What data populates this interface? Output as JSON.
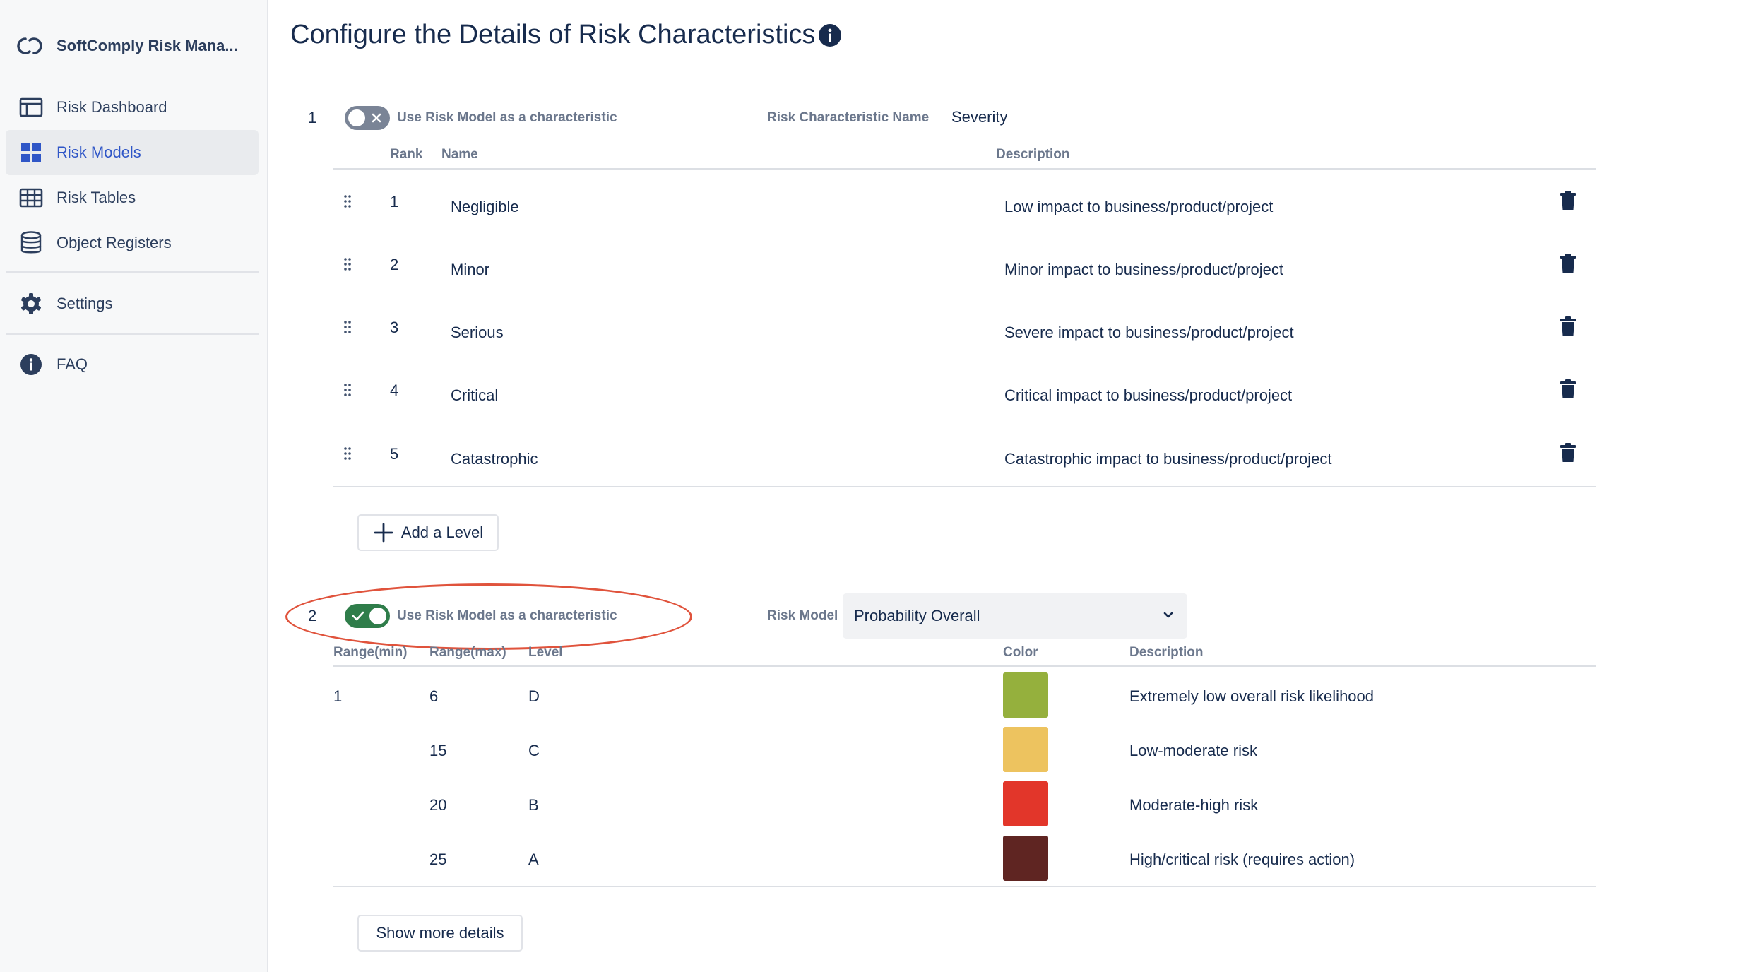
{
  "sidebar": {
    "app_name": "SoftComply Risk Mana...",
    "logo_icon": "softcomply-logo",
    "items": [
      {
        "label": "Risk Dashboard",
        "icon": "dashboard-icon"
      },
      {
        "label": "Risk Models",
        "icon": "grid-icon",
        "active": true
      },
      {
        "label": "Risk Tables",
        "icon": "table-icon"
      },
      {
        "label": "Object Registers",
        "icon": "database-icon"
      },
      {
        "label": "Settings",
        "icon": "gear-icon"
      },
      {
        "label": "FAQ",
        "icon": "info-icon"
      }
    ]
  },
  "page": {
    "title": "Configure the Details of Risk Characteristics"
  },
  "characteristic_1": {
    "number": "1",
    "toggle_label": "Use Risk Model as a characteristic",
    "toggle_on": false,
    "name_label": "Risk Characteristic Name",
    "name_value": "Severity",
    "columns": {
      "rank": "Rank",
      "name": "Name",
      "description": "Description"
    },
    "rows": [
      {
        "rank": "1",
        "name": "Negligible",
        "description": "Low impact to business/product/project"
      },
      {
        "rank": "2",
        "name": "Minor",
        "description": "Minor impact to business/product/project"
      },
      {
        "rank": "3",
        "name": "Serious",
        "description": "Severe impact to business/product/project"
      },
      {
        "rank": "4",
        "name": "Critical",
        "description": "Critical impact to business/product/project"
      },
      {
        "rank": "5",
        "name": "Catastrophic",
        "description": "Catastrophic impact to business/product/project"
      }
    ],
    "add_level_label": "Add a Level"
  },
  "characteristic_2": {
    "number": "2",
    "toggle_label": "Use Risk Model as a characteristic",
    "toggle_on": true,
    "model_label": "Risk Model",
    "model_value": "Probability Overall",
    "columns": {
      "range_min": "Range(min)",
      "range_max": "Range(max)",
      "level": "Level",
      "color": "Color",
      "description": "Description"
    },
    "rows": [
      {
        "range_min": "1",
        "range_max": "6",
        "level": "D",
        "color": "#95b03d",
        "description": "Extremely low overall risk likelihood"
      },
      {
        "range_min": "",
        "range_max": "15",
        "level": "C",
        "color": "#edc35f",
        "description": "Low-moderate risk"
      },
      {
        "range_min": "",
        "range_max": "20",
        "level": "B",
        "color": "#e2362a",
        "description": "Moderate-high risk"
      },
      {
        "range_min": "",
        "range_max": "25",
        "level": "A",
        "color": "#5f2522",
        "description": "High/critical risk (requires action)"
      }
    ],
    "show_more_label": "Show more details"
  },
  "colors": {
    "accent": "#2f56c7",
    "toggle_on": "#2f7d4a",
    "toggle_off": "#7a8496",
    "highlight": "#e0533c"
  }
}
